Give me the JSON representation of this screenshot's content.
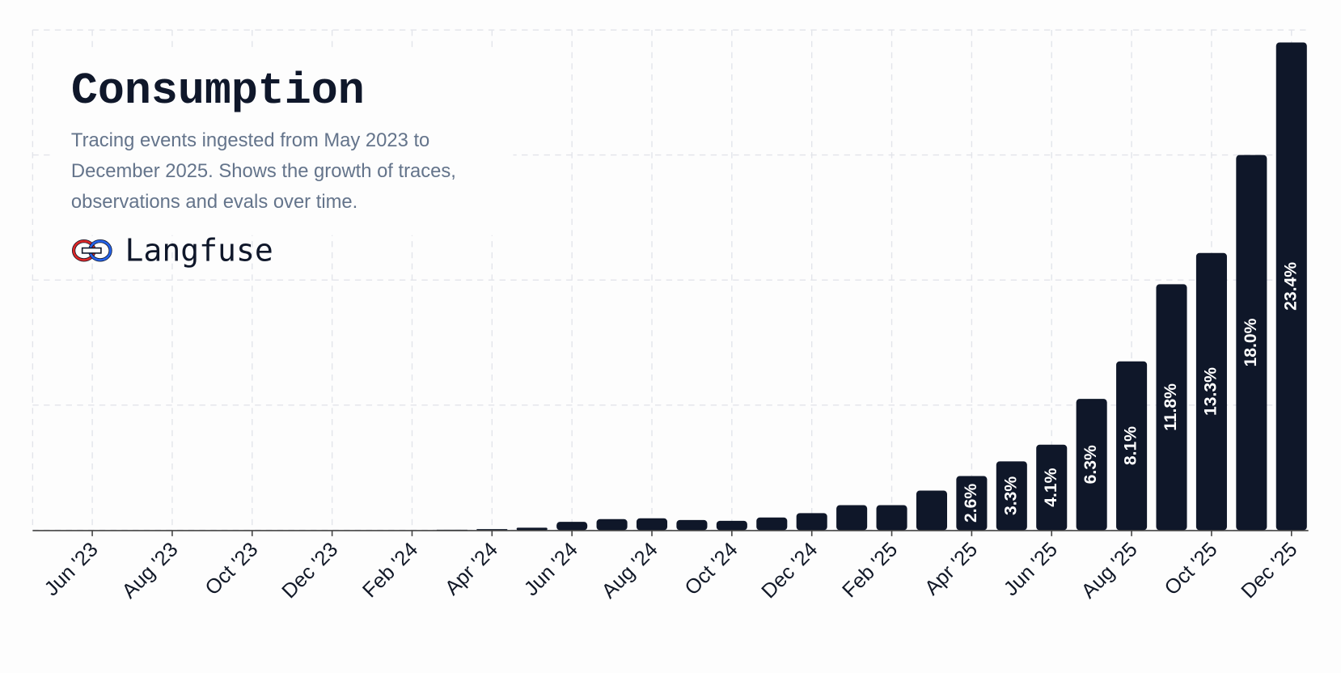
{
  "chart_data": {
    "type": "bar",
    "title": "Consumption",
    "subtitle": "Tracing events ingested from May 2023 to December 2025. Shows the growth of traces, observations and evals over time.",
    "brand": "Langfuse",
    "categories": [
      null,
      "Jun '23",
      null,
      "Aug '23",
      null,
      "Oct '23",
      null,
      "Dec '23",
      null,
      "Feb '24",
      null,
      "Apr '24",
      null,
      "Jun '24",
      null,
      "Aug '24",
      null,
      "Oct '24",
      null,
      "Dec '24",
      null,
      "Feb '25",
      null,
      "Apr '25",
      null,
      "Jun '25",
      null,
      "Aug '25",
      null,
      "Oct '25",
      null,
      "Dec '25"
    ],
    "values": [
      0,
      0,
      0,
      0,
      0,
      0,
      0,
      0,
      0,
      0,
      0.02,
      0.05,
      0.12,
      0.4,
      0.53,
      0.57,
      0.49,
      0.45,
      0.61,
      0.82,
      1.2,
      1.2,
      1.9,
      2.6,
      3.3,
      4.1,
      6.3,
      8.1,
      11.8,
      13.3,
      18.0,
      23.4
    ],
    "value_labels": [
      null,
      null,
      null,
      null,
      null,
      null,
      null,
      null,
      null,
      null,
      null,
      null,
      null,
      null,
      null,
      null,
      null,
      null,
      null,
      null,
      null,
      null,
      null,
      "2.6%",
      "3.3%",
      "4.1%",
      "6.3%",
      "8.1%",
      "11.8%",
      "13.3%",
      "18.0%",
      "23.4%"
    ],
    "color": "#0f1729",
    "ylim": [
      0,
      24
    ],
    "yticks": [
      0,
      6,
      12,
      18,
      24
    ],
    "grid": true
  }
}
